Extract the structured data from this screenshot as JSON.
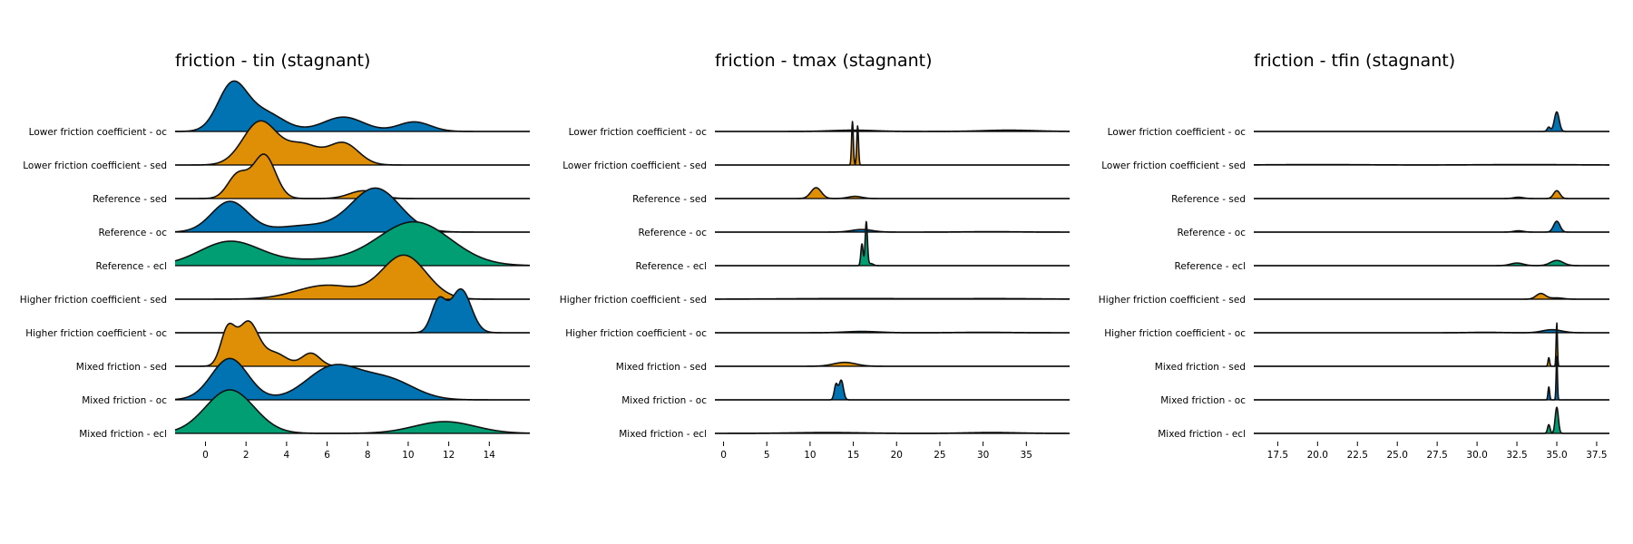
{
  "palette": {
    "oc": "#0173b2",
    "sed": "#de8f05",
    "ecl": "#029e73"
  },
  "chart_data": [
    {
      "type": "ridgeline",
      "title": "friction - tin (stagnant)",
      "xlim": [
        -1.5,
        16
      ],
      "ticks": [
        0,
        2,
        4,
        6,
        8,
        10,
        12,
        14
      ],
      "tick_labels": [
        "0",
        "2",
        "4",
        "6",
        "8",
        "10",
        "12",
        "14"
      ],
      "series": [
        {
          "label": "Lower friction coefficient - oc",
          "color_key": "oc",
          "peaks": [
            [
              1.3,
              0.7,
              1.0
            ],
            [
              2.8,
              1.0,
              0.45
            ],
            [
              6.8,
              1.0,
              0.33
            ],
            [
              10.3,
              0.8,
              0.22
            ]
          ]
        },
        {
          "label": "Lower friction coefficient - sed",
          "color_key": "sed",
          "peaks": [
            [
              2.7,
              0.85,
              1.0
            ],
            [
              4.8,
              0.8,
              0.45
            ],
            [
              6.8,
              0.75,
              0.5
            ]
          ]
        },
        {
          "label": "Reference - sed",
          "color_key": "sed",
          "peaks": [
            [
              1.6,
              0.5,
              0.55
            ],
            [
              2.9,
              0.55,
              1.0
            ],
            [
              7.8,
              0.7,
              0.18
            ]
          ]
        },
        {
          "label": "Reference - oc",
          "color_key": "oc",
          "peaks": [
            [
              1.2,
              0.9,
              0.7
            ],
            [
              8.4,
              1.2,
              1.0
            ],
            [
              5.0,
              1.5,
              0.15
            ]
          ]
        },
        {
          "label": "Reference - ecl",
          "color_key": "ecl",
          "peaks": [
            [
              1.2,
              1.5,
              0.55
            ],
            [
              10.3,
              1.8,
              1.0
            ],
            [
              5.5,
              2.0,
              0.12
            ]
          ]
        },
        {
          "label": "Higher friction coefficient - sed",
          "color_key": "sed",
          "peaks": [
            [
              9.8,
              1.1,
              1.0
            ],
            [
              6.0,
              1.5,
              0.32
            ]
          ]
        },
        {
          "label": "Higher friction coefficient - oc",
          "color_key": "oc",
          "peaks": [
            [
              11.5,
              0.35,
              0.72
            ],
            [
              12.6,
              0.5,
              1.0
            ]
          ]
        },
        {
          "label": "Mixed friction - sed",
          "color_key": "sed",
          "peaks": [
            [
              1.1,
              0.35,
              0.82
            ],
            [
              2.1,
              0.5,
              1.0
            ],
            [
              3.4,
              0.6,
              0.3
            ],
            [
              5.2,
              0.45,
              0.3
            ]
          ]
        },
        {
          "label": "Mixed friction - oc",
          "color_key": "oc",
          "peaks": [
            [
              1.2,
              0.9,
              0.95
            ],
            [
              6.3,
              1.3,
              0.75
            ],
            [
              9.0,
              1.3,
              0.45
            ]
          ]
        },
        {
          "label": "Mixed friction - ecl",
          "color_key": "ecl",
          "peaks": [
            [
              1.2,
              1.2,
              1.0
            ],
            [
              11.8,
              1.5,
              0.27
            ]
          ]
        }
      ]
    },
    {
      "type": "ridgeline",
      "title": "friction - tmax (stagnant)",
      "xlim": [
        -1,
        40
      ],
      "ticks": [
        0,
        5,
        10,
        15,
        20,
        25,
        30,
        35
      ],
      "tick_labels": [
        "0",
        "5",
        "10",
        "15",
        "20",
        "25",
        "30",
        "35"
      ],
      "series": [
        {
          "label": "Lower friction coefficient - oc",
          "color_key": "oc",
          "peaks": [
            [
              15.0,
              2.5,
              0.03
            ],
            [
              33.0,
              3.0,
              0.03
            ]
          ]
        },
        {
          "label": "Lower friction coefficient - sed",
          "color_key": "sed",
          "peaks": [
            [
              14.9,
              0.1,
              1.0
            ],
            [
              15.5,
              0.1,
              0.9
            ]
          ]
        },
        {
          "label": "Reference - sed",
          "color_key": "sed",
          "peaks": [
            [
              10.7,
              0.6,
              0.25
            ],
            [
              15.2,
              0.8,
              0.05
            ]
          ]
        },
        {
          "label": "Reference - oc",
          "color_key": "oc",
          "peaks": [
            [
              16.0,
              1.2,
              0.06
            ],
            [
              31.0,
              3.0,
              0.01
            ]
          ]
        },
        {
          "label": "Reference - ecl",
          "color_key": "ecl",
          "peaks": [
            [
              16.0,
              0.13,
              0.5
            ],
            [
              16.5,
              0.13,
              1.0
            ],
            [
              17.0,
              0.3,
              0.05
            ]
          ]
        },
        {
          "label": "Higher friction coefficient - sed",
          "color_key": "sed",
          "peaks": [
            [
              15.0,
              8.0,
              0.015
            ],
            [
              32.0,
              5.0,
              0.012
            ]
          ]
        },
        {
          "label": "Higher friction coefficient - oc",
          "color_key": "oc",
          "peaks": [
            [
              16.0,
              2.0,
              0.03
            ],
            [
              30.0,
              3.0,
              0.01
            ]
          ]
        },
        {
          "label": "Mixed friction - sed",
          "color_key": "sed",
          "peaks": [
            [
              14.0,
              1.3,
              0.09
            ]
          ]
        },
        {
          "label": "Mixed friction - oc",
          "color_key": "oc",
          "peaks": [
            [
              13.0,
              0.2,
              0.35
            ],
            [
              13.6,
              0.25,
              0.45
            ]
          ]
        },
        {
          "label": "Mixed friction - ecl",
          "color_key": "ecl",
          "peaks": [
            [
              12.0,
              4.0,
              0.02
            ],
            [
              31.0,
              3.0,
              0.02
            ]
          ]
        }
      ]
    },
    {
      "type": "ridgeline",
      "title": "friction - tfin (stagnant)",
      "xlim": [
        16,
        38.3
      ],
      "ticks": [
        17.5,
        20.0,
        22.5,
        25.0,
        27.5,
        30.0,
        32.5,
        35.0,
        37.5
      ],
      "tick_labels": [
        "17.5",
        "20.0",
        "22.5",
        "25.0",
        "27.5",
        "30.0",
        "32.5",
        "35.0",
        "37.5"
      ],
      "series": [
        {
          "label": "Lower friction coefficient - oc",
          "color_key": "oc",
          "peaks": [
            [
              34.5,
              0.1,
              0.1
            ],
            [
              35.0,
              0.15,
              0.45
            ]
          ]
        },
        {
          "label": "Lower friction coefficient - sed",
          "color_key": "sed",
          "peaks": [
            [
              20.0,
              3.0,
              0.01
            ],
            [
              33.0,
              3.0,
              0.01
            ]
          ]
        },
        {
          "label": "Reference - sed",
          "color_key": "sed",
          "peaks": [
            [
              32.6,
              0.3,
              0.03
            ],
            [
              35.0,
              0.2,
              0.18
            ]
          ]
        },
        {
          "label": "Reference - oc",
          "color_key": "oc",
          "peaks": [
            [
              32.6,
              0.3,
              0.03
            ],
            [
              35.0,
              0.2,
              0.25
            ]
          ]
        },
        {
          "label": "Reference - ecl",
          "color_key": "ecl",
          "peaks": [
            [
              32.5,
              0.4,
              0.06
            ],
            [
              35.0,
              0.4,
              0.12
            ]
          ]
        },
        {
          "label": "Higher friction coefficient - sed",
          "color_key": "sed",
          "peaks": [
            [
              34.0,
              0.3,
              0.13
            ],
            [
              35.0,
              0.4,
              0.03
            ]
          ]
        },
        {
          "label": "Higher friction coefficient - oc",
          "color_key": "oc",
          "peaks": [
            [
              30.5,
              1.0,
              0.01
            ],
            [
              34.7,
              0.6,
              0.07
            ]
          ]
        },
        {
          "label": "Mixed friction - sed",
          "color_key": "sed",
          "peaks": [
            [
              34.5,
              0.05,
              0.2
            ],
            [
              35.0,
              0.04,
              1.0
            ]
          ]
        },
        {
          "label": "Mixed friction - oc",
          "color_key": "oc",
          "peaks": [
            [
              34.5,
              0.05,
              0.3
            ],
            [
              35.0,
              0.04,
              1.0
            ]
          ]
        },
        {
          "label": "Mixed friction - ecl",
          "color_key": "ecl",
          "peaks": [
            [
              34.5,
              0.08,
              0.2
            ],
            [
              35.0,
              0.1,
              0.6
            ]
          ]
        }
      ]
    }
  ]
}
